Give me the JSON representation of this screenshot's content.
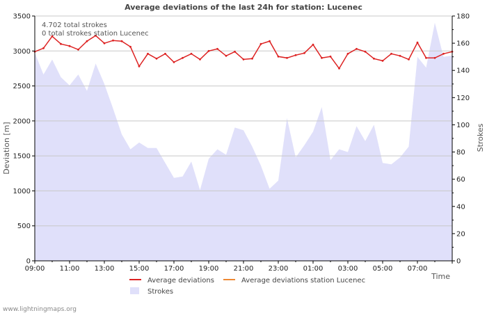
{
  "chart_data": {
    "type": "line",
    "title": "Average deviations of the last 24h for station: Lucenec",
    "ylabel_left": "Deviation  [m]",
    "ylabel_right": "Strokes",
    "xlabel": "Time",
    "ylim_left": [
      0,
      3500
    ],
    "ylim_right": [
      0,
      180
    ],
    "yticks_left": [
      0,
      500,
      1000,
      1500,
      2000,
      2500,
      3000,
      3500
    ],
    "yticks_right": [
      0,
      20,
      40,
      60,
      80,
      100,
      120,
      140,
      160,
      180
    ],
    "xlim": [
      0,
      24
    ],
    "xticks": [
      {
        "t": 0,
        "label": "09:00"
      },
      {
        "t": 2,
        "label": "11:00"
      },
      {
        "t": 4,
        "label": "13:00"
      },
      {
        "t": 6,
        "label": "15:00"
      },
      {
        "t": 8,
        "label": "17:00"
      },
      {
        "t": 10,
        "label": "19:00"
      },
      {
        "t": 12,
        "label": "21:00"
      },
      {
        "t": 14,
        "label": "23:00"
      },
      {
        "t": 16,
        "label": "01:00"
      },
      {
        "t": 18,
        "label": "03:00"
      },
      {
        "t": 20,
        "label": "05:00"
      },
      {
        "t": 22,
        "label": "07:00"
      }
    ],
    "grid": true,
    "annotations": [
      "4.702 total strokes",
      "0 total strokes station Lucenec"
    ],
    "legend": {
      "position": "bottom",
      "items": [
        {
          "label": "Average deviations",
          "color": "#dd2222",
          "kind": "line"
        },
        {
          "label": "Average deviations station Lucenec",
          "color": "#ee8833",
          "kind": "line"
        },
        {
          "label": "Strokes",
          "color": "#e0e0fa",
          "kind": "area"
        }
      ]
    },
    "series": [
      {
        "name": "Average deviations",
        "axis": "left",
        "color": "#dd2222",
        "x": [
          0,
          0.5,
          1,
          1.5,
          2,
          2.5,
          3,
          3.5,
          4,
          4.5,
          5,
          5.5,
          6,
          6.5,
          7,
          7.5,
          8,
          8.5,
          9,
          9.5,
          10,
          10.5,
          11,
          11.5,
          12,
          12.5,
          13,
          13.5,
          14,
          14.5,
          15,
          15.5,
          16,
          16.5,
          17,
          17.5,
          18,
          18.5,
          19,
          19.5,
          20,
          20.5,
          21,
          21.5,
          22,
          22.5,
          23,
          23.5,
          24
        ],
        "values": [
          2990,
          3040,
          3210,
          3100,
          3070,
          3020,
          3140,
          3220,
          3110,
          3150,
          3140,
          3060,
          2780,
          2960,
          2890,
          2960,
          2840,
          2900,
          2960,
          2880,
          3000,
          3030,
          2930,
          2990,
          2880,
          2890,
          3100,
          3140,
          2920,
          2900,
          2940,
          2970,
          3090,
          2900,
          2920,
          2750,
          2960,
          3030,
          2990,
          2890,
          2860,
          2960,
          2930,
          2880,
          3120,
          2900,
          2900,
          2960,
          2990
        ]
      },
      {
        "name": "Average deviations station Lucenec",
        "axis": "left",
        "color": "#ee8833",
        "x": [],
        "values": []
      },
      {
        "name": "Strokes",
        "axis": "right",
        "color": "#e0e0fa",
        "x": [
          0,
          0.5,
          1,
          1.5,
          2,
          2.5,
          3,
          3.5,
          4,
          4.5,
          5,
          5.5,
          6,
          6.5,
          7,
          7.5,
          8,
          8.5,
          9,
          9.5,
          10,
          10.5,
          11,
          11.5,
          12,
          12.5,
          13,
          13.5,
          14,
          14.5,
          15,
          15.5,
          16,
          16.5,
          17,
          17.5,
          18,
          18.5,
          19,
          19.5,
          20,
          20.5,
          21,
          21.5,
          22,
          22.5,
          23,
          23.5,
          24
        ],
        "values": [
          153,
          137,
          148,
          135,
          129,
          137,
          125,
          145,
          130,
          112,
          93,
          82,
          87,
          83,
          83,
          72,
          61,
          62,
          73,
          52,
          75,
          82,
          78,
          98,
          96,
          84,
          70,
          53,
          59,
          105,
          76,
          85,
          95,
          113,
          74,
          82,
          80,
          99,
          88,
          100,
          72,
          71,
          76,
          84,
          150,
          142,
          175,
          150,
          151
        ]
      }
    ]
  },
  "footer": "www.lightningmaps.org"
}
